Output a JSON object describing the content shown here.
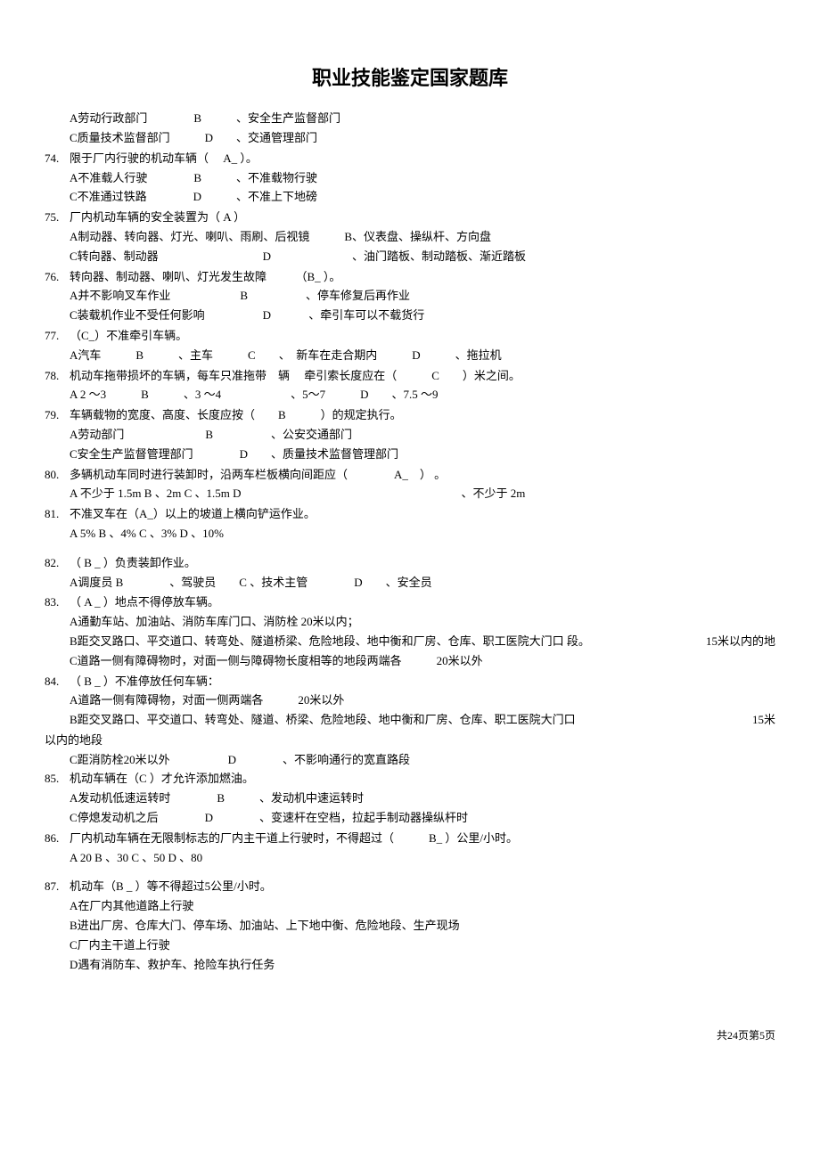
{
  "title": "职业技能鉴定国家题库",
  "footer": "共24页第5页",
  "questions": [
    {
      "num": "",
      "lines": [
        "A劳动行政部门　　　　B　　　、安全生产监督部门",
        "C质量技术监督部门　　　D　　、交通管理部门"
      ]
    },
    {
      "num": "74.",
      "lines": [
        "限于厂内行驶的机动车辆（　 A_  ）。",
        "A不准载人行驶　　　　B　　　、不准载物行驶",
        "C不准通过铁路　　　　D　　　、不准上下地磅"
      ]
    },
    {
      "num": "75.",
      "lines": [
        "厂内机动车辆的安全装置为（ A ）",
        "A制动器、转向器、灯光、喇叭、雨刷、后视镜　　　B、仪表盘、操纵杆、方向盘",
        "C转向器、制动器　　　　　　　　　D　　　　　　　、油门踏板、制动踏板、渐近踏板"
      ]
    },
    {
      "num": "76.",
      "lines": [
        "转向器、制动器、喇叭、灯光发生故障　　　（B_ ）。",
        "A并不影响叉车作业　　　　　　B　　　　　、停车修复后再作业",
        "C装载机作业不受任何影响　　　　　D 　　　、牵引车可以不载货行"
      ]
    },
    {
      "num": "77.",
      "lines": [
        "（C_）不准牵引车辆。",
        "A汽车　　　B　　　、主车　　　C　　、　新车在走合期内　　　D　　　、拖拉机"
      ]
    },
    {
      "num": "78.",
      "lines": [
        "机动车拖带损坏的车辆，每车只准拖带　辆 　牵引索长度应在（　　　C　　）米之间。",
        "A 2 ～3　　　B　　　、3 ～4　　　　　　、5～7　　　D　　、7.5 ～9"
      ]
    },
    {
      "num": "79.",
      "lines": [
        "车辆载物的宽度、高度、长度应按（　　B　　　）的规定执行。",
        "A劳动部门　　　　　　　B　　　　　、公安交通部门",
        "C安全生产监督管理部门　　　　D　　、质量技术监督管理部门"
      ]
    },
    {
      "num": "80.",
      "lines": [
        "多辆机动车同时进行装卸时，沿两车栏板横向间距应（　　　　A_　） 。",
        "A 不少于 1.5m B 、2m C 、1.5m D　　　　　　　　　　　　　　　　　　　、不少于 2m"
      ]
    },
    {
      "num": "81.",
      "lines": [
        "不准叉车在（A_）以上的坡道上横向铲运作业。",
        "A 5% B 、4% C 、3% D 、10%"
      ]
    },
    {
      "num": "82.",
      "lines": [
        "（ B _ ）负责装卸作业。",
        "A调度员 B　　　　、驾驶员　　C 、技术主管　　　　D　　、安全员"
      ]
    },
    {
      "num": "83.",
      "lines": [
        "（ A _ ）地点不得停放车辆。",
        "A通勤车站、加油站、消防车库门口、消防栓 20米以内；",
        {
          "text": "B距交叉路口、平交道口、转弯处、隧道桥梁、危险地段、地中衡和厂房、仓库、职工医院大门口 段。",
          "right": "15米以内的地"
        },
        "C道路一侧有障碍物时，对面一侧与障碍物长度相等的地段两端各　　　20米以外"
      ]
    },
    {
      "num": "84.",
      "lines": [
        "（ B _ ）不准停放任何车辆：",
        "A道路一侧有障碍物，对面一侧两端各　　　20米以外",
        {
          "text": "B距交叉路口、平交道口、转弯处、隧道、桥梁、危险地段、地中衡和厂房、仓库、职工医院大门口",
          "right": "15米"
        }
      ],
      "extraLine": "以内的地段",
      "moreLines": [
        "C距消防栓20米以外　　　　　D　　　　、不影响通行的宽直路段"
      ]
    },
    {
      "num": "85.",
      "lines": [
        "机动车辆在（C ）才允许添加燃油。",
        "A发动机低速运转时　　　　B　　　、发动机中速运转时",
        "C停熄发动机之后　　　　D　　　　、变速杆在空档，拉起手制动器操纵杆时"
      ]
    },
    {
      "num": "86.",
      "lines": [
        "厂内机动车辆在无限制标志的厂内主干道上行驶时，不得超过（　　　B_ ）公里/小时。",
        "A 20 B 、30 C 、50 D 、80"
      ]
    },
    {
      "num": "87.",
      "lines": [
        "机动车（B _ ）等不得超过5公里/小时。",
        "A在厂内其他道路上行驶",
        "B进出厂房、仓库大门、停车场、加油站、上下地中衡、危险地段、生产现场",
        "C厂内主干道上行驶",
        "D遇有消防车、救护车、抢险车执行任务"
      ]
    }
  ]
}
